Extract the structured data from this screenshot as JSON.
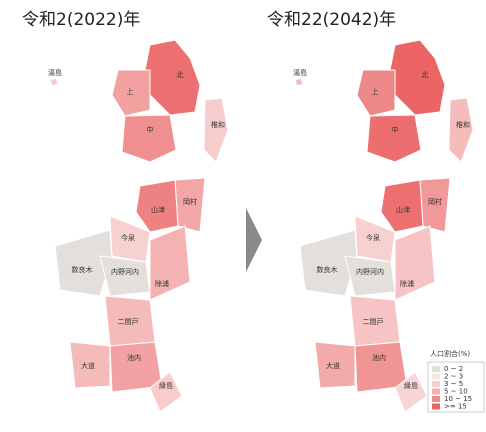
{
  "maps": [
    {
      "title": "令和2(2022)年",
      "regions": [
        {
          "name": "北",
          "color": "#ec7072"
        },
        {
          "name": "上",
          "color": "#f2a0a0"
        },
        {
          "name": "中",
          "color": "#ef8f8f"
        },
        {
          "name": "椎和",
          "color": "#f7cccc"
        },
        {
          "name": "湯島",
          "color": "#f7cccc"
        },
        {
          "name": "岡村",
          "color": "#f3a6a6"
        },
        {
          "name": "山津",
          "color": "#ee8282"
        },
        {
          "name": "今泉",
          "color": "#f7d0d0"
        },
        {
          "name": "数良木",
          "color": "#e4dfdb"
        },
        {
          "name": "内野河内",
          "color": "#e4dfdb"
        },
        {
          "name": "除浦",
          "color": "#f4b2b2"
        },
        {
          "name": "二間戸",
          "color": "#f5baba"
        },
        {
          "name": "大道",
          "color": "#f5baba"
        },
        {
          "name": "池内",
          "color": "#f2a2a2"
        },
        {
          "name": "縁島",
          "color": "#f7cccc"
        }
      ]
    },
    {
      "title": "令和22(2042)年",
      "regions": [
        {
          "name": "北",
          "color": "#eb6565"
        },
        {
          "name": "上",
          "color": "#ee8888"
        },
        {
          "name": "中",
          "color": "#ec6e6e"
        },
        {
          "name": "椎和",
          "color": "#f5bcbc"
        },
        {
          "name": "湯島",
          "color": "#f5bcbc"
        },
        {
          "name": "岡村",
          "color": "#f19898"
        },
        {
          "name": "山津",
          "color": "#ec7070"
        },
        {
          "name": "今泉",
          "color": "#f7d0d0"
        },
        {
          "name": "数良木",
          "color": "#e4dfdb"
        },
        {
          "name": "内野河内",
          "color": "#e4dfdb"
        },
        {
          "name": "除浦",
          "color": "#f6c4c4"
        },
        {
          "name": "二間戸",
          "color": "#f6c4c4"
        },
        {
          "name": "大道",
          "color": "#f3aaaa"
        },
        {
          "name": "池内",
          "color": "#f09494"
        },
        {
          "name": "縁島",
          "color": "#f8d4d4"
        }
      ]
    }
  ],
  "legend": {
    "title": "人口割合(%)",
    "items": [
      {
        "label": "0 ~ 2",
        "color": "#e4dfdb"
      },
      {
        "label": "2 ~ 3",
        "color": "#fbe4e4"
      },
      {
        "label": "3 ~ 5",
        "color": "#f8cfcf"
      },
      {
        "label": "5 ~ 10",
        "color": "#f4b0b0"
      },
      {
        "label": "10 ~ 15",
        "color": "#f08c8c"
      },
      {
        "label": ">= 15",
        "color": "#eb6464"
      }
    ]
  }
}
